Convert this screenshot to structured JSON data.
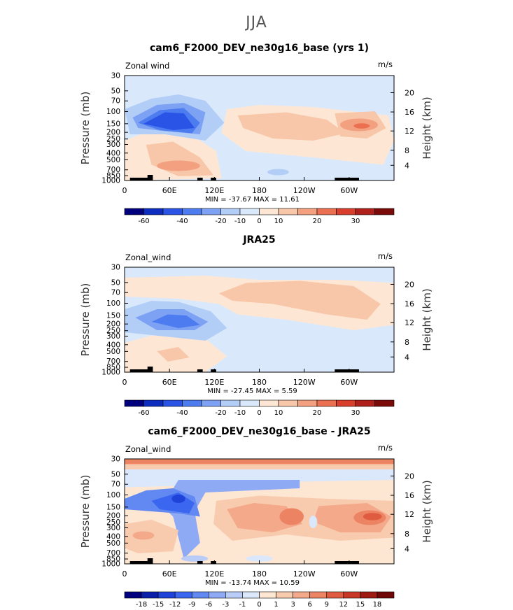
{
  "title": "JJA",
  "chart_data": [
    {
      "type": "heatmap",
      "title": "cam6_F2000_DEV_ne30g16_base (yrs 1)",
      "variable": "Zonal wind",
      "units": "m/s",
      "ylabel": "Pressure (mb)",
      "ylabel_right": "Height (km)",
      "p_ticks": [
        "30",
        "50",
        "70",
        "100",
        "150",
        "200",
        "250",
        "300",
        "400",
        "500",
        "700",
        "850",
        "1000"
      ],
      "height_ticks": [
        "20",
        "16",
        "12",
        "8",
        "4"
      ],
      "x_ticks": [
        "0",
        "60E",
        "120E",
        "180",
        "120W",
        "60W"
      ],
      "stats": "MIN = -37.67   MAX =  11.61",
      "colorbar_labels": [
        "-60",
        "-40",
        "-20",
        "-10",
        "0",
        "10",
        "20",
        "30"
      ],
      "min": -37.67,
      "max": 11.61
    },
    {
      "type": "heatmap",
      "title": "JRA25",
      "variable": "Zonal_wind",
      "units": "m/s",
      "ylabel": "Pressure (mb)",
      "ylabel_right": "Height (km)",
      "p_ticks": [
        "30",
        "50",
        "70",
        "100",
        "150",
        "200",
        "250",
        "300",
        "400",
        "500",
        "700",
        "850",
        "1000"
      ],
      "height_ticks": [
        "20",
        "16",
        "12",
        "8",
        "4"
      ],
      "x_ticks": [
        "0",
        "60E",
        "120E",
        "180",
        "120W",
        "60W"
      ],
      "stats": "MIN = -27.45   MAX =   5.59",
      "colorbar_labels": [
        "-60",
        "-40",
        "-20",
        "-10",
        "0",
        "10",
        "20",
        "30"
      ],
      "min": -27.45,
      "max": 5.59
    },
    {
      "type": "heatmap",
      "title": "cam6_F2000_DEV_ne30g16_base - JRA25",
      "variable": "Zonal_wind",
      "units": "m/s",
      "ylabel": "Pressure (mb)",
      "ylabel_right": "Height (km)",
      "p_ticks": [
        "30",
        "50",
        "70",
        "100",
        "150",
        "200",
        "250",
        "300",
        "400",
        "500",
        "700",
        "850",
        "1000"
      ],
      "height_ticks": [
        "20",
        "16",
        "12",
        "8",
        "4"
      ],
      "x_ticks": [
        "0",
        "60E",
        "120E",
        "180",
        "120W",
        "60W"
      ],
      "stats": "MIN = -13.74   MAX =  10.59",
      "colorbar_labels": [
        "-18",
        "-15",
        "-12",
        "-9",
        "-6",
        "-3",
        "-1",
        "0",
        "1",
        "3",
        "6",
        "9",
        "12",
        "15",
        "18"
      ],
      "min": -13.74,
      "max": 10.59
    }
  ],
  "colors": {
    "scale_13": [
      "#00007f",
      "#0c2dbf",
      "#2a54e6",
      "#4d7cf0",
      "#7ea2f3",
      "#b2cef7",
      "#d9e9fb",
      "#fde7d4",
      "#f8c6a8",
      "#f2a07f",
      "#ea7051",
      "#d83e2b",
      "#b0201a",
      "#7a0b09"
    ],
    "scale_16": [
      "#00007f",
      "#0a1ea8",
      "#1f43d8",
      "#3b66ef",
      "#6289f1",
      "#8faaf4",
      "#b9ccf8",
      "#dbe8fc",
      "#fde6d2",
      "#f9cbae",
      "#f3a98a",
      "#ec8464",
      "#e05c40",
      "#c83826",
      "#9e1b14",
      "#6e0706"
    ]
  }
}
